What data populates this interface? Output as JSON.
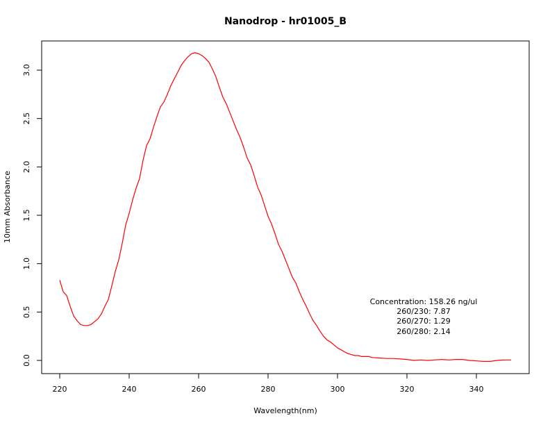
{
  "chart_data": {
    "type": "line",
    "title": "Nanodrop - hr01005_B",
    "xlabel": "Wavelength(nm)",
    "ylabel": "10mm Absorbance",
    "xlim": [
      220,
      350
    ],
    "ylim": [
      -0.12,
      3.3
    ],
    "x_ticks": [
      220,
      240,
      260,
      280,
      300,
      320,
      340
    ],
    "y_ticks": [
      0.0,
      0.5,
      1.0,
      1.5,
      2.0,
      2.5,
      3.0
    ],
    "y_tick_labels": [
      "0.0",
      "0.5",
      "1.0",
      "1.5",
      "2.0",
      "2.5",
      "3.0"
    ],
    "grid": false,
    "series": [
      {
        "color": "#ff0000",
        "x": [
          220,
          221,
          222,
          223,
          224,
          225,
          226,
          227,
          228,
          229,
          230,
          231,
          232,
          233,
          234,
          235,
          236,
          237,
          238,
          239,
          240,
          241,
          242,
          243,
          244,
          245,
          246,
          247,
          248,
          249,
          250,
          251,
          252,
          253,
          254,
          255,
          256,
          257,
          258,
          259,
          260,
          261,
          262,
          263,
          264,
          265,
          266,
          267,
          268,
          269,
          270,
          271,
          272,
          273,
          274,
          275,
          276,
          277,
          278,
          279,
          280,
          281,
          282,
          283,
          284,
          285,
          286,
          287,
          288,
          289,
          290,
          291,
          292,
          293,
          294,
          295,
          296,
          297,
          298,
          299,
          300,
          301,
          302,
          303,
          304,
          305,
          306,
          307,
          308,
          309,
          310,
          312,
          314,
          316,
          318,
          320,
          322,
          324,
          326,
          328,
          330,
          332,
          334,
          336,
          338,
          340,
          342,
          344,
          346,
          348,
          350
        ],
        "y": [
          0.83,
          0.71,
          0.67,
          0.56,
          0.46,
          0.41,
          0.37,
          0.36,
          0.36,
          0.37,
          0.4,
          0.43,
          0.48,
          0.56,
          0.63,
          0.77,
          0.92,
          1.04,
          1.21,
          1.4,
          1.52,
          1.66,
          1.78,
          1.88,
          2.07,
          2.22,
          2.29,
          2.41,
          2.52,
          2.62,
          2.67,
          2.75,
          2.84,
          2.91,
          2.98,
          3.05,
          3.1,
          3.14,
          3.17,
          3.18,
          3.17,
          3.15,
          3.12,
          3.08,
          3.01,
          2.93,
          2.82,
          2.72,
          2.65,
          2.56,
          2.47,
          2.38,
          2.3,
          2.2,
          2.09,
          2.02,
          1.91,
          1.79,
          1.71,
          1.6,
          1.49,
          1.41,
          1.31,
          1.2,
          1.13,
          1.04,
          0.95,
          0.86,
          0.8,
          0.71,
          0.63,
          0.56,
          0.48,
          0.41,
          0.36,
          0.3,
          0.25,
          0.21,
          0.19,
          0.16,
          0.13,
          0.11,
          0.09,
          0.07,
          0.06,
          0.05,
          0.05,
          0.04,
          0.04,
          0.04,
          0.03,
          0.025,
          0.02,
          0.02,
          0.015,
          0.01,
          0.0,
          0.005,
          0.0,
          0.005,
          0.01,
          0.005,
          0.01,
          0.01,
          0.0,
          -0.005,
          -0.01,
          -0.01,
          0.0,
          0.005,
          0.005
        ]
      }
    ]
  },
  "annotation": {
    "lines": [
      "Concentration: 158.26 ng/ul",
      "260/230: 7.87",
      "260/270: 1.29",
      "260/280: 2.14"
    ]
  }
}
